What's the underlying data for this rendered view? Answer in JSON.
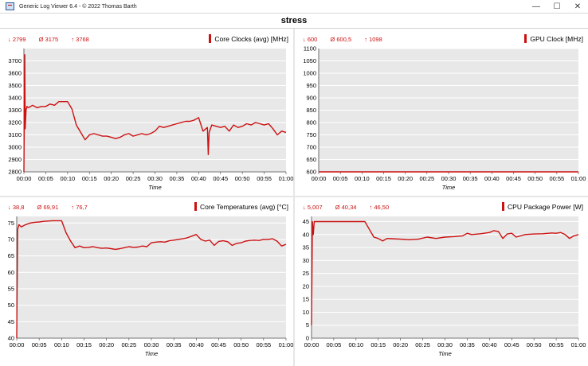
{
  "window": {
    "title": "Generic Log Viewer 6.4 - © 2022 Thomas Barth",
    "minimize_glyph": "—",
    "maximize_glyph": "☐",
    "close_glyph": "✕"
  },
  "page_title": "stress",
  "colors": {
    "series": "#cc1111",
    "plot_bg": "#e8e8e8",
    "grid": "#ffffff",
    "axis": "#444444"
  },
  "chart_data": [
    {
      "type": "line",
      "title": "Core Clocks (avg) [MHz]",
      "stats": {
        "min": "2799",
        "avg": "3175",
        "max": "3768"
      },
      "xlabel": "Time",
      "xlim": [
        0,
        60
      ],
      "ylim": [
        2800,
        3800
      ],
      "x_ticks": [
        "00:00",
        "00:05",
        "00:10",
        "00:15",
        "00:20",
        "00:25",
        "00:30",
        "00:35",
        "00:40",
        "00:45",
        "00:50",
        "00:55",
        "01:00"
      ],
      "y_ticks": [
        2800,
        2900,
        3000,
        3100,
        3200,
        3300,
        3400,
        3500,
        3600,
        3700
      ],
      "series": [
        {
          "x": [
            0,
            0.2,
            0.3,
            0.5,
            0.7,
            1,
            2,
            3,
            4,
            5,
            6,
            7,
            8,
            9,
            10,
            11,
            12,
            13,
            14,
            15,
            16,
            17,
            18,
            19,
            20,
            21,
            22,
            23,
            24,
            25,
            26,
            27,
            28,
            29,
            30,
            31,
            32,
            33,
            34,
            35,
            36,
            37,
            38,
            39,
            40,
            41,
            42,
            42.2,
            42.4,
            43,
            44,
            45,
            46,
            47,
            48,
            49,
            50,
            51,
            52,
            53,
            54,
            55,
            56,
            57,
            58,
            59,
            60
          ],
          "y": [
            2800,
            3750,
            3150,
            3300,
            3330,
            3320,
            3340,
            3320,
            3330,
            3330,
            3350,
            3340,
            3370,
            3370,
            3370,
            3310,
            3180,
            3120,
            3060,
            3100,
            3110,
            3100,
            3090,
            3090,
            3080,
            3070,
            3080,
            3100,
            3110,
            3090,
            3100,
            3110,
            3100,
            3110,
            3130,
            3170,
            3160,
            3170,
            3180,
            3190,
            3200,
            3210,
            3210,
            3220,
            3240,
            3130,
            3160,
            2940,
            3120,
            3180,
            3170,
            3160,
            3170,
            3130,
            3180,
            3160,
            3170,
            3190,
            3180,
            3200,
            3190,
            3180,
            3190,
            3150,
            3100,
            3130,
            3120
          ]
        }
      ]
    },
    {
      "type": "line",
      "title": "GPU Clock [MHz]",
      "stats": {
        "min": "600",
        "avg": "600,5",
        "max": "1098"
      },
      "xlabel": "Time",
      "xlim": [
        0,
        60
      ],
      "ylim": [
        600,
        1100
      ],
      "x_ticks": [
        "00:00",
        "00:05",
        "00:10",
        "00:15",
        "00:20",
        "00:25",
        "00:30",
        "00:35",
        "00:40",
        "00:45",
        "00:50",
        "00:55",
        "01:00"
      ],
      "y_ticks": [
        600,
        650,
        700,
        750,
        800,
        850,
        900,
        950,
        1000,
        1050,
        1100
      ],
      "series": [
        {
          "x": [
            0,
            60
          ],
          "y": [
            600,
            600
          ]
        }
      ]
    },
    {
      "type": "line",
      "title": "Core Temperatures (avg) [°C]",
      "stats": {
        "min": "38,8",
        "avg": "69,91",
        "max": "76,7"
      },
      "xlabel": "Time",
      "xlim": [
        0,
        60
      ],
      "ylim": [
        40,
        77
      ],
      "x_ticks": [
        "00:00",
        "00:05",
        "00:10",
        "00:15",
        "00:20",
        "00:25",
        "00:30",
        "00:35",
        "00:40",
        "00:45",
        "00:50",
        "00:55",
        "01:00"
      ],
      "y_ticks": [
        40,
        45,
        50,
        55,
        60,
        65,
        70,
        75
      ],
      "series": [
        {
          "x": [
            0,
            0.2,
            0.5,
            1,
            2,
            3,
            4,
            5,
            6,
            7,
            8,
            9,
            10,
            11,
            12,
            13,
            14,
            15,
            16,
            17,
            18,
            19,
            20,
            21,
            22,
            23,
            24,
            25,
            26,
            27,
            28,
            29,
            30,
            31,
            32,
            33,
            34,
            35,
            36,
            37,
            38,
            39,
            40,
            41,
            42,
            43,
            44,
            45,
            46,
            47,
            48,
            49,
            50,
            51,
            52,
            53,
            54,
            55,
            56,
            57,
            58,
            59,
            60
          ],
          "y": [
            40,
            73,
            74.5,
            73.8,
            74.5,
            75,
            75.2,
            75.3,
            75.5,
            75.6,
            75.7,
            75.7,
            75.7,
            72,
            69.5,
            67.5,
            68,
            67.5,
            67.6,
            67.8,
            67.5,
            67.3,
            67.4,
            67.2,
            67,
            67.2,
            67.5,
            67.8,
            67.6,
            67.7,
            68,
            67.8,
            69,
            69.2,
            69.3,
            69.2,
            69.6,
            69.8,
            70,
            70.2,
            70.5,
            71,
            71.5,
            70,
            69.5,
            69.8,
            68.2,
            69.4,
            69.6,
            69.3,
            68.2,
            68.8,
            69,
            69.5,
            69.7,
            69.8,
            69.7,
            70,
            70,
            70.2,
            69.5,
            68,
            68.5
          ]
        }
      ]
    },
    {
      "type": "line",
      "title": "CPU Package Power [W]",
      "stats": {
        "min": "5,007",
        "avg": "40,34",
        "max": "46,50"
      },
      "xlabel": "Time",
      "xlim": [
        0,
        60
      ],
      "ylim": [
        0,
        47
      ],
      "x_ticks": [
        "00:00",
        "00:05",
        "00:10",
        "00:15",
        "00:20",
        "00:25",
        "00:30",
        "00:35",
        "00:40",
        "00:45",
        "00:50",
        "00:55",
        "01:00"
      ],
      "y_ticks": [
        0,
        5,
        10,
        15,
        20,
        25,
        30,
        35,
        40,
        45
      ],
      "series": [
        {
          "x": [
            0,
            0.2,
            0.4,
            0.6,
            1,
            2,
            4,
            6,
            8,
            10,
            12,
            13,
            14,
            15,
            16,
            17,
            18,
            20,
            22,
            24,
            26,
            28,
            30,
            32,
            34,
            35,
            36,
            38,
            40,
            41,
            42,
            43,
            44,
            45,
            46,
            48,
            50,
            52,
            54,
            55,
            56,
            57,
            58,
            59,
            60
          ],
          "y": [
            5,
            45,
            40,
            45,
            45,
            45,
            45,
            45,
            45,
            45,
            45,
            42,
            39,
            38.5,
            37.5,
            38.5,
            38.4,
            38.2,
            38,
            38.2,
            39,
            38.5,
            39,
            39.2,
            39.5,
            40.5,
            40,
            40.3,
            40.8,
            41.5,
            41.2,
            38.5,
            40.2,
            40.5,
            39,
            40,
            40.2,
            40.3,
            40.6,
            40.5,
            40.8,
            40,
            38.5,
            39.5,
            40
          ]
        }
      ]
    }
  ]
}
